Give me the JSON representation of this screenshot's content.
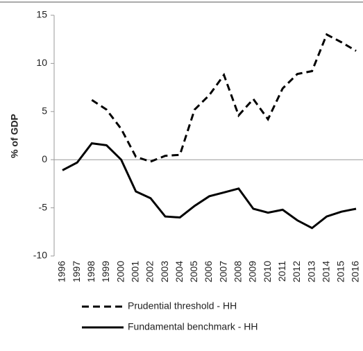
{
  "chart_data": {
    "type": "line",
    "ylabel": "% of GDP",
    "categories": [
      "1996",
      "1997",
      "1998",
      "1999",
      "2000",
      "2001",
      "2002",
      "2003",
      "2004",
      "2005",
      "2006",
      "2007",
      "2008",
      "2009",
      "2010",
      "2011",
      "2012",
      "2013",
      "2014",
      "2015",
      "2016"
    ],
    "series": [
      {
        "name": "Prudential threshold - HH",
        "color": "#000000",
        "dashed": true,
        "values": [
          null,
          null,
          6.2,
          5.2,
          3.2,
          0.3,
          -0.2,
          0.4,
          0.5,
          5.2,
          6.7,
          8.8,
          4.6,
          6.3,
          4.2,
          7.4,
          8.9,
          9.2,
          13.0,
          12.2,
          11.3
        ]
      },
      {
        "name": "Fundamental benchmark - HH",
        "color": "#000000",
        "dashed": false,
        "values": [
          -1.1,
          -0.3,
          1.7,
          1.5,
          0,
          -3.3,
          -4.0,
          -5.9,
          -6.0,
          -4.8,
          -3.8,
          -3.4,
          -3.0,
          -5.1,
          -5.5,
          -5.2,
          -6.3,
          -7.1,
          -5.9,
          -5.4,
          -5.1
        ]
      }
    ],
    "ylim": [
      -10,
      15
    ],
    "yticks": [
      -10,
      -5,
      0,
      5,
      10,
      15
    ],
    "zero_line": true
  }
}
